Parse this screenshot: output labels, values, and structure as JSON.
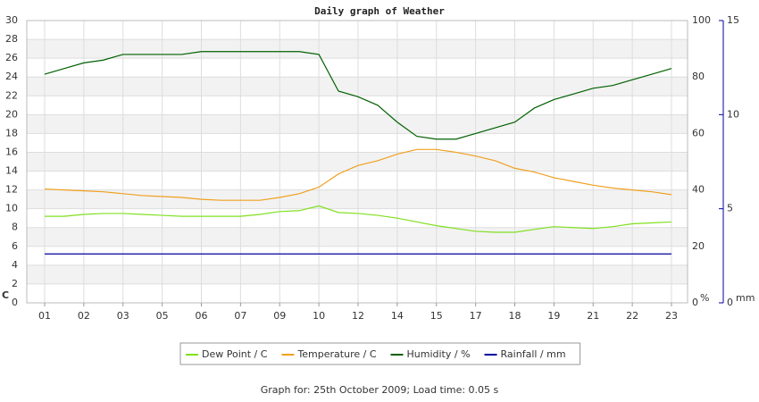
{
  "chart_data": {
    "type": "line",
    "title": "Daily graph of Weather",
    "footer": "Graph for: 25th October 2009; Load time: 0.05 s",
    "categories": [
      "01",
      null,
      "02",
      null,
      "03",
      null,
      "05",
      null,
      "06",
      null,
      "07",
      null,
      "09",
      null,
      "10",
      null,
      "12",
      null,
      "14",
      null,
      "15",
      null,
      "17",
      null,
      "18",
      null,
      "19",
      null,
      "21",
      null,
      "22",
      null,
      "23"
    ],
    "ylim": [
      0,
      30
    ],
    "yticks": [
      0,
      2,
      4,
      6,
      8,
      10,
      12,
      14,
      16,
      18,
      20,
      22,
      24,
      26,
      28,
      30
    ],
    "ylabel": "C",
    "ycolor": "#e8a000",
    "y2lim": [
      0,
      100
    ],
    "y2ticks": [
      0,
      20,
      40,
      60,
      80,
      100
    ],
    "y2label": "%",
    "y2color": "#006000",
    "y3lim": [
      0,
      15
    ],
    "y3ticks": [
      0,
      5,
      10,
      15
    ],
    "y3label": "mm",
    "y3color": "#0000a0",
    "grid": true,
    "series": [
      {
        "name": "Dew Point / C",
        "color": "#80e020",
        "axis": "y",
        "values": [
          9.2,
          9.2,
          9.4,
          9.5,
          9.5,
          9.4,
          9.3,
          9.2,
          9.2,
          9.2,
          9.2,
          9.4,
          9.7,
          9.8,
          10.3,
          9.6,
          9.5,
          9.3,
          9.0,
          8.6,
          8.2,
          7.9,
          7.6,
          7.5,
          7.5,
          7.8,
          8.1,
          8.0,
          7.9,
          8.1,
          8.4,
          8.5,
          8.6
        ]
      },
      {
        "name": "Temperature / C",
        "color": "#f0a020",
        "axis": "y",
        "values": [
          12.1,
          12.0,
          11.9,
          11.8,
          11.6,
          11.4,
          11.3,
          11.2,
          11.0,
          10.9,
          10.9,
          10.9,
          11.2,
          11.6,
          12.3,
          13.7,
          14.6,
          15.1,
          15.8,
          16.3,
          16.3,
          16.0,
          15.6,
          15.1,
          14.3,
          13.9,
          13.3,
          12.9,
          12.5,
          12.2,
          12.0,
          11.8,
          11.5
        ]
      },
      {
        "name": "Humidity / %",
        "color": "#006000",
        "axis": "y2",
        "values": [
          81,
          83,
          85,
          86,
          88,
          88,
          88,
          88,
          89,
          89,
          89,
          89,
          89,
          89,
          88,
          75,
          73,
          70,
          64,
          59,
          58,
          58,
          60,
          62,
          64,
          69,
          72,
          74,
          76,
          77,
          79,
          81,
          83
        ]
      },
      {
        "name": "Rainfall / mm",
        "color": "#0000a0",
        "axis": "y3",
        "values": [
          2.6,
          2.6,
          2.6,
          2.6,
          2.6,
          2.6,
          2.6,
          2.6,
          2.6,
          2.6,
          2.6,
          2.6,
          2.6,
          2.6,
          2.6,
          2.6,
          2.6,
          2.6,
          2.6,
          2.6,
          2.6,
          2.6,
          2.6,
          2.6,
          2.6,
          2.6,
          2.6,
          2.6,
          2.6,
          2.6,
          2.6,
          2.6,
          2.6
        ]
      }
    ]
  }
}
